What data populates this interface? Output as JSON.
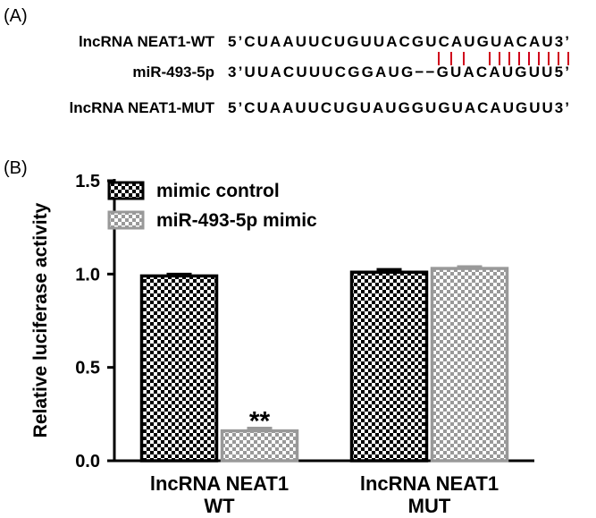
{
  "panel_a": {
    "label": "(A)",
    "rows": [
      {
        "name": "lncRNA NEAT1-WT",
        "sequence": "5’CUAAUUCUGUUACGUCAUGUACAU3’"
      },
      {
        "name": "miR-493-5p",
        "sequence": "3’UUACUUUCGGAUG−−GUACAUGUU5’"
      },
      {
        "name": "lncRNA NEAT1-MUT",
        "sequence": "5’CUAAUUCUGUAUGGUGUACAUGUU3’"
      }
    ]
  },
  "panel_b": {
    "label": "(B)"
  },
  "chart_data": {
    "type": "bar",
    "ylabel": "Relative luciferase activity",
    "categories": [
      "lncRNA NEAT1\nWT",
      "lncRNA NEAT1\nMUT"
    ],
    "series": [
      {
        "name": "mimic control",
        "color": "#000000",
        "values": [
          0.99,
          1.01
        ],
        "errors": [
          0.01,
          0.015
        ]
      },
      {
        "name": "miR-493-5p mimic",
        "color": "#999999",
        "values": [
          0.16,
          1.03
        ],
        "errors": [
          0.015,
          0.01
        ]
      }
    ],
    "annotation": "**",
    "ylim": [
      0,
      1.5
    ],
    "yticks": [
      {
        "value": 0,
        "label": "0.0"
      },
      {
        "value": 0.5,
        "label": "0.5"
      },
      {
        "value": 1,
        "label": "1.0"
      },
      {
        "value": 1.5,
        "label": "1.5"
      }
    ]
  }
}
